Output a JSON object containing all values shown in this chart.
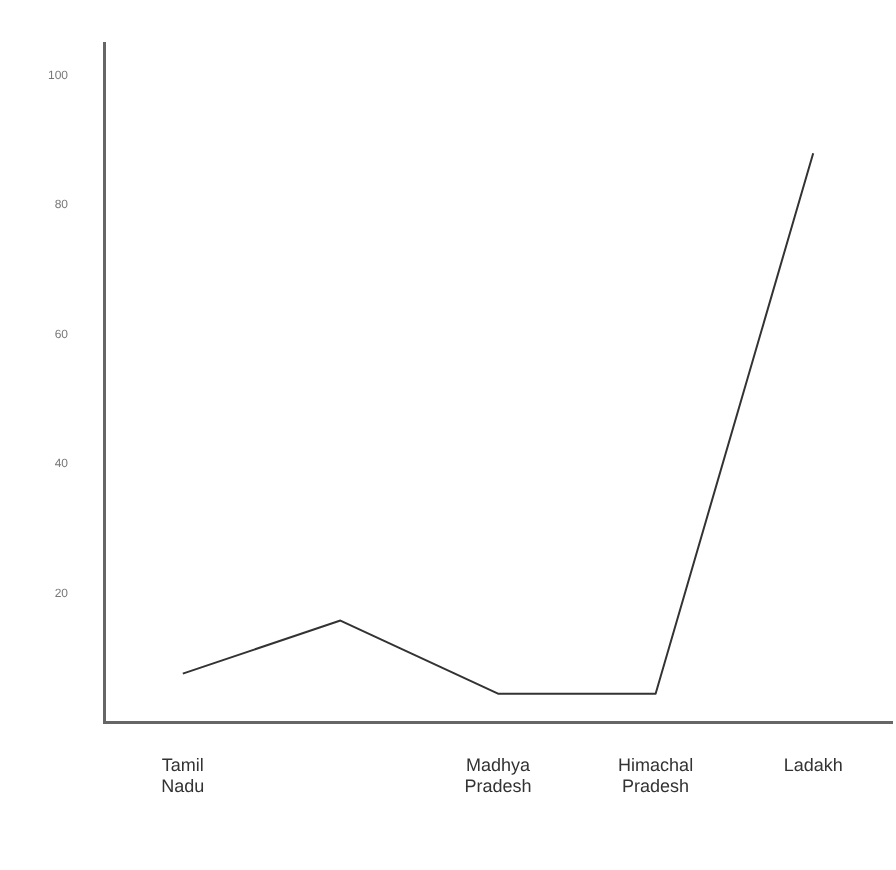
{
  "chart_data": {
    "type": "line",
    "categories": [
      "Tamil Nadu",
      null,
      "Madhya Pradesh",
      "Himachal Pradesh",
      "Ladakh"
    ],
    "series": [
      {
        "color": "#333333",
        "values": [
          7.6,
          15.8,
          4.5,
          4.5,
          88
        ]
      }
    ],
    "ylim": [
      0,
      105
    ],
    "yticks": [
      20,
      40,
      60,
      80,
      100
    ],
    "grid": false,
    "legend": false,
    "marker": "none",
    "line_style": "solid"
  }
}
